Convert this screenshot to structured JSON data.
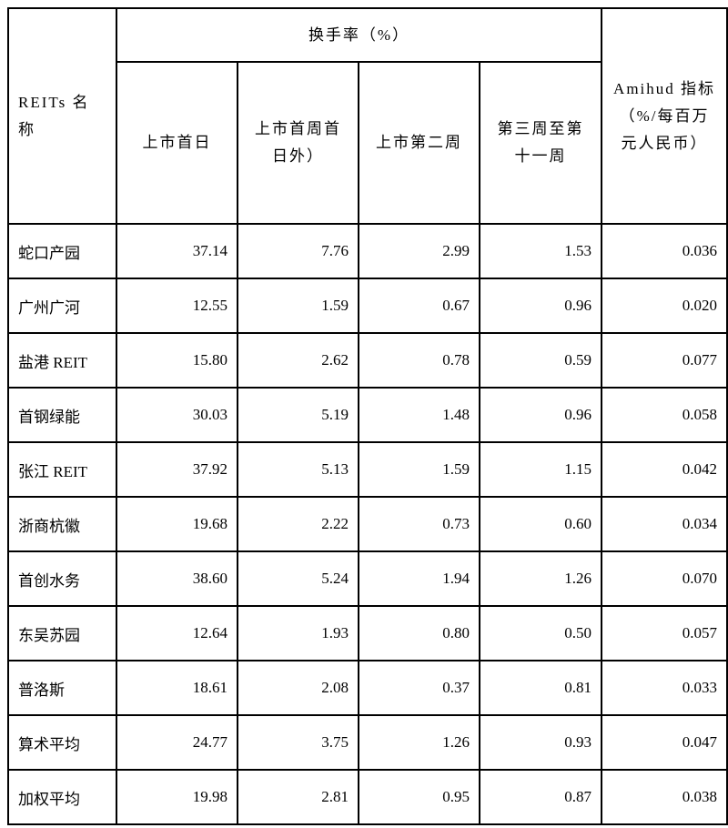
{
  "header": {
    "name_col": "REITs 名称",
    "turnover_group": "换手率（%）",
    "amihud": "Amihud 指标（%/每百万元人民币）",
    "sub_cols": [
      "上市首日",
      "上市首周首日外）",
      "上市第二周",
      "第三周至第十一周"
    ]
  },
  "rows": [
    {
      "name": "蛇口产园",
      "values": [
        "37.14",
        "7.76",
        "2.99",
        "1.53",
        "0.036"
      ]
    },
    {
      "name": "广州广河",
      "values": [
        "12.55",
        "1.59",
        "0.67",
        "0.96",
        "0.020"
      ]
    },
    {
      "name": "盐港 REIT",
      "values": [
        "15.80",
        "2.62",
        "0.78",
        "0.59",
        "0.077"
      ]
    },
    {
      "name": "首钢绿能",
      "values": [
        "30.03",
        "5.19",
        "1.48",
        "0.96",
        "0.058"
      ]
    },
    {
      "name": "张江 REIT",
      "values": [
        "37.92",
        "5.13",
        "1.59",
        "1.15",
        "0.042"
      ]
    },
    {
      "name": "浙商杭徽",
      "values": [
        "19.68",
        "2.22",
        "0.73",
        "0.60",
        "0.034"
      ]
    },
    {
      "name": "首创水务",
      "values": [
        "38.60",
        "5.24",
        "1.94",
        "1.26",
        "0.070"
      ]
    },
    {
      "name": "东吴苏园",
      "values": [
        "12.64",
        "1.93",
        "0.80",
        "0.50",
        "0.057"
      ]
    },
    {
      "name": "普洛斯",
      "values": [
        "18.61",
        "2.08",
        "0.37",
        "0.81",
        "0.033"
      ]
    },
    {
      "name": "算术平均",
      "values": [
        "24.77",
        "3.75",
        "1.26",
        "0.93",
        "0.047"
      ]
    },
    {
      "name": "加权平均",
      "values": [
        "19.98",
        "2.81",
        "0.95",
        "0.87",
        "0.038"
      ]
    }
  ]
}
